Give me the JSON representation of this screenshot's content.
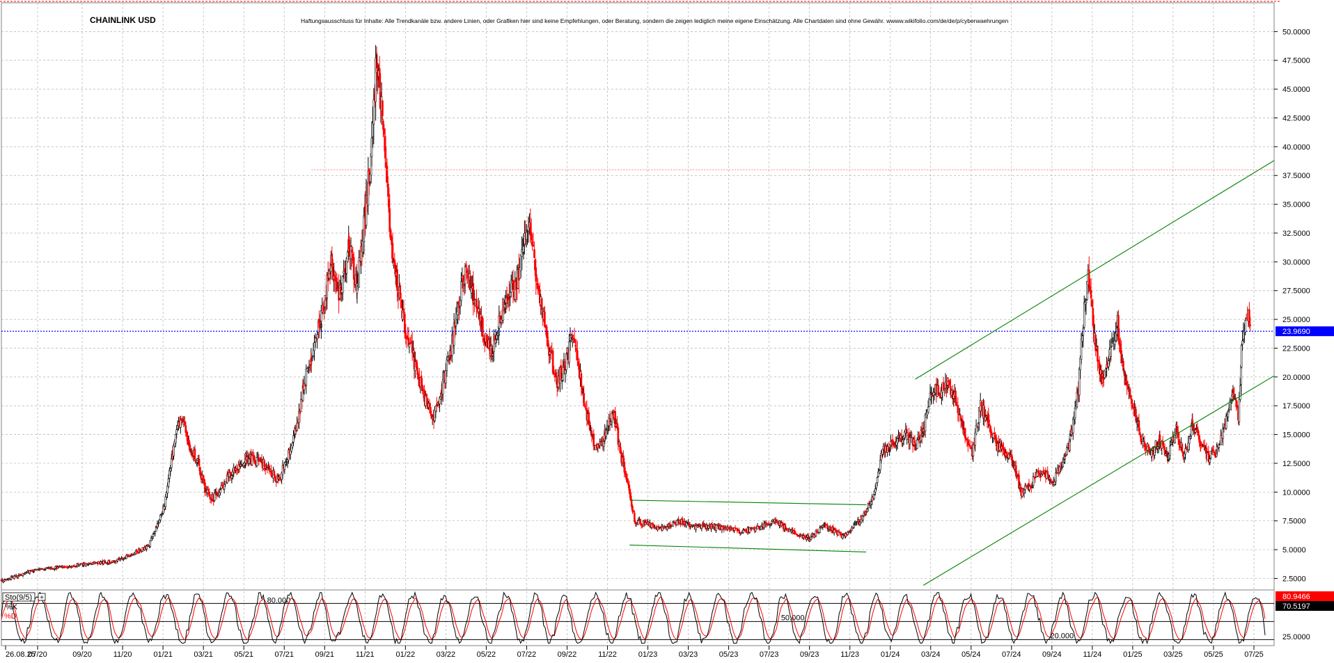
{
  "symbol": "CHAINLINK USD",
  "disclaimer": "Haftungsausschluss für Inhalte: Alle Trendkanäle bzw. andere Linien, oder Grafiken hier sind keine Empfehlungen, oder Beratung, sondern die zeigen lediglich meine eigene Einschätzung. Alle Chartdaten sind ohne Gewähr.  wwww.wikifolio.com/de/de/p/cyberwaehrungen",
  "colors": {
    "up": "#000000",
    "down": "#ff0000",
    "trend": "#008000",
    "support": "#0000ff",
    "resistance": "#ff8080",
    "grid": "#b0b0b0"
  },
  "chart_data": [
    {
      "type": "candlestick",
      "title": "CHAINLINK USD",
      "ylim": [
        1.5,
        52.5
      ],
      "y_ticks": [
        "50.0000",
        "47.5000",
        "45.0000",
        "42.5000",
        "40.0000",
        "37.5000",
        "35.0000",
        "32.5000",
        "30.0000",
        "27.5000",
        "25.0000",
        "22.5000",
        "20.0000",
        "17.5000",
        "15.0000",
        "12.5000",
        "10.0000",
        "7.5000",
        "5.0000",
        "2.5000"
      ],
      "x_ticks": [
        "26.08.25",
        "07/20",
        "09/20",
        "11/20",
        "01/21",
        "03/21",
        "05/21",
        "07/21",
        "09/21",
        "11/21",
        "01/22",
        "03/22",
        "05/22",
        "07/22",
        "09/22",
        "11/22",
        "01/23",
        "03/23",
        "05/23",
        "07/23",
        "09/23",
        "11/23",
        "01/24",
        "03/24",
        "05/24",
        "07/24",
        "09/24",
        "11/24",
        "01/25",
        "03/25",
        "05/25",
        "07/25"
      ],
      "grid": true,
      "last_price": "23.9690",
      "support_level": 23.969,
      "resistance_level": 38.0,
      "series": [
        {
          "values": [
            [
              0,
              2.3
            ],
            [
              2,
              3.2
            ],
            [
              5,
              3.7
            ],
            [
              7,
              4.0
            ],
            [
              8,
              4.6
            ],
            [
              9,
              5.3
            ],
            [
              9.5,
              7.0
            ],
            [
              10,
              8.9
            ],
            [
              10.5,
              13.5
            ],
            [
              11,
              16.5
            ],
            [
              11.5,
              14.0
            ],
            [
              12,
              12.8
            ],
            [
              12.5,
              10.0
            ],
            [
              13,
              9.5
            ],
            [
              14,
              11.5
            ],
            [
              15,
              13.0
            ],
            [
              16,
              12.5
            ],
            [
              17,
              11.0
            ],
            [
              18,
              15.0
            ],
            [
              18.5,
              19.0
            ],
            [
              19,
              22.0
            ],
            [
              19.6,
              25.0
            ],
            [
              20.2,
              30.0
            ],
            [
              20.8,
              27.0
            ],
            [
              21.3,
              31.5
            ],
            [
              21.8,
              28.0
            ],
            [
              22.3,
              34.0
            ],
            [
              22.7,
              40.5
            ],
            [
              23.0,
              48.0
            ],
            [
              23.4,
              42.0
            ],
            [
              23.8,
              33.0
            ],
            [
              24.2,
              28.5
            ],
            [
              24.6,
              25.0
            ],
            [
              25.0,
              23.0
            ],
            [
              25.5,
              20.0
            ],
            [
              26,
              18.0
            ],
            [
              26.5,
              16.5
            ],
            [
              27.0,
              19.0
            ],
            [
              27.5,
              22.0
            ],
            [
              28.0,
              26.0
            ],
            [
              28.5,
              30.0
            ],
            [
              29.0,
              26.5
            ],
            [
              29.5,
              24.0
            ],
            [
              30,
              22.0
            ],
            [
              30.5,
              24.5
            ],
            [
              31,
              27.5
            ],
            [
              31.6,
              28.0
            ],
            [
              32.0,
              31.0
            ],
            [
              32.3,
              34.0
            ],
            [
              32.7,
              29.5
            ],
            [
              33.0,
              27.0
            ],
            [
              33.5,
              23.0
            ],
            [
              34.0,
              19.5
            ],
            [
              34.5,
              21.0
            ],
            [
              35.0,
              23.5
            ],
            [
              35.3,
              21.5
            ],
            [
              35.7,
              18.0
            ],
            [
              36.0,
              16.0
            ],
            [
              36.5,
              13.5
            ],
            [
              37.0,
              15.0
            ],
            [
              37.5,
              17.0
            ],
            [
              38.0,
              13.0
            ],
            [
              38.5,
              10.0
            ],
            [
              38.8,
              7.5
            ],
            [
              39.5,
              7.2
            ],
            [
              40.5,
              6.8
            ],
            [
              41.5,
              7.5
            ],
            [
              42.5,
              7.0
            ],
            [
              43.5,
              7.0
            ],
            [
              44.5,
              6.8
            ],
            [
              45.5,
              6.6
            ],
            [
              46.5,
              7.0
            ],
            [
              47.5,
              7.5
            ],
            [
              48.5,
              6.5
            ],
            [
              49.5,
              6.0
            ],
            [
              50.5,
              7.2
            ],
            [
              51.5,
              6.2
            ],
            [
              52.0,
              6.5
            ],
            [
              52.5,
              7.4
            ],
            [
              53.0,
              8.3
            ],
            [
              53.5,
              10.0
            ],
            [
              54.0,
              13.5
            ],
            [
              54.5,
              14.0
            ],
            [
              55.0,
              14.5
            ],
            [
              55.5,
              15.0
            ],
            [
              56.0,
              14.0
            ],
            [
              56.5,
              15.5
            ],
            [
              57.0,
              19.0
            ],
            [
              57.5,
              18.5
            ],
            [
              58.0,
              19.5
            ],
            [
              58.5,
              18.0
            ],
            [
              59.0,
              15.0
            ],
            [
              59.5,
              13.5
            ],
            [
              60.0,
              17.5
            ],
            [
              60.5,
              16.0
            ],
            [
              61.0,
              14.0
            ],
            [
              61.5,
              13.5
            ],
            [
              62.0,
              12.5
            ],
            [
              62.5,
              10.0
            ],
            [
              63.0,
              10.5
            ],
            [
              63.5,
              11.5
            ],
            [
              64.0,
              11.5
            ],
            [
              64.5,
              11.0
            ],
            [
              65.0,
              12.5
            ],
            [
              65.5,
              14.5
            ],
            [
              66.0,
              19.0
            ],
            [
              66.3,
              25.0
            ],
            [
              66.6,
              29.0
            ],
            [
              67.0,
              23.0
            ],
            [
              67.5,
              19.5
            ],
            [
              68.0,
              22.5
            ],
            [
              68.4,
              24.5
            ],
            [
              68.8,
              20.0
            ],
            [
              69.2,
              18.0
            ],
            [
              69.6,
              16.0
            ],
            [
              70.0,
              14.0
            ],
            [
              70.5,
              13.5
            ],
            [
              71.0,
              14.5
            ],
            [
              71.5,
              13.0
            ],
            [
              72.0,
              15.5
            ],
            [
              72.5,
              13.0
            ],
            [
              73.0,
              16.0
            ],
            [
              73.5,
              14.0
            ],
            [
              74.0,
              13.0
            ],
            [
              74.5,
              13.5
            ],
            [
              75.0,
              16.0
            ],
            [
              75.5,
              18.5
            ],
            [
              75.8,
              16.5
            ],
            [
              76.0,
              22.0
            ],
            [
              76.3,
              26.0
            ],
            [
              76.6,
              23.5
            ]
          ]
        }
      ],
      "trend_lines": [
        {
          "from": [
            38.5,
            9.3
          ],
          "to": [
            53.0,
            8.9
          ]
        },
        {
          "from": [
            38.5,
            5.4
          ],
          "to": [
            53.0,
            4.8
          ]
        },
        {
          "from": [
            56.0,
            19.8
          ],
          "to": [
            78.0,
            38.8
          ]
        },
        {
          "from": [
            56.5,
            1.9
          ],
          "to": [
            78.0,
            20.1
          ]
        }
      ]
    },
    {
      "type": "line",
      "title": "Sto(9/5)",
      "ylim": [
        10,
        100
      ],
      "legend": [
        "%K",
        "%D"
      ],
      "series": [
        {
          "name": "%K"
        },
        {
          "name": "%D"
        }
      ],
      "y_ticks": [
        "25.0000"
      ],
      "levels": [
        20,
        50,
        80
      ],
      "level_labels": [
        "20.000",
        "50.000",
        "80.000"
      ],
      "k_last": "80.9466",
      "d_last": "70.5197"
    }
  ]
}
